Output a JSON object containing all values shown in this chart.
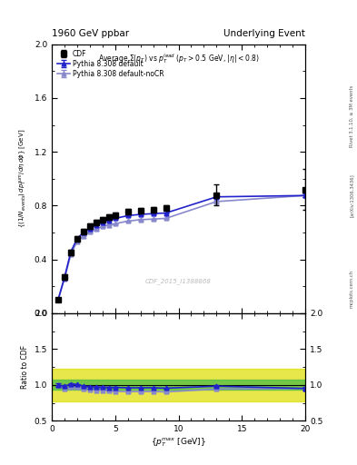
{
  "title_left": "1960 GeV ppbar",
  "title_right": "Underlying Event",
  "plot_title": "Average $\\Sigma(p_T)$ vs $p_T^{lead}$ ($p_T > 0.5$ GeV, $|\\eta| < 0.8$)",
  "watermark": "CDF_2015_I1388868",
  "rivet_label": "Rivet 3.1.10, ≥ 3M events",
  "arxiv_label": "[arXiv:1306.3436]",
  "mcplots_label": "mcplots.cern.ch",
  "xlabel": "$\\{p_T^{max}$ [GeV]$\\}$",
  "ylabel_main": "$\\{(1/N_{events})\\,dp_T^{sum}/d\\eta\\,d\\phi\\}$ [GeV]",
  "ylabel_ratio": "Ratio to CDF",
  "cdf_x": [
    0.5,
    1.0,
    1.5,
    2.0,
    2.5,
    3.0,
    3.5,
    4.0,
    4.5,
    5.0,
    6.0,
    7.0,
    8.0,
    9.0,
    13.0,
    20.0
  ],
  "cdf_y": [
    0.1,
    0.27,
    0.45,
    0.55,
    0.61,
    0.645,
    0.675,
    0.695,
    0.715,
    0.73,
    0.755,
    0.765,
    0.77,
    0.78,
    0.88,
    0.92
  ],
  "cdf_yerr": [
    0.01,
    0.02,
    0.02,
    0.02,
    0.02,
    0.02,
    0.02,
    0.02,
    0.02,
    0.02,
    0.02,
    0.02,
    0.02,
    0.02,
    0.08,
    0.15
  ],
  "py_def_x": [
    0.5,
    1.0,
    1.5,
    2.0,
    2.5,
    3.0,
    3.5,
    4.0,
    4.5,
    5.0,
    6.0,
    7.0,
    8.0,
    9.0,
    13.0,
    20.0
  ],
  "py_def_y": [
    0.1,
    0.265,
    0.455,
    0.555,
    0.6,
    0.63,
    0.655,
    0.675,
    0.69,
    0.705,
    0.725,
    0.735,
    0.74,
    0.745,
    0.865,
    0.875
  ],
  "py_def_yerr": [
    0.002,
    0.003,
    0.003,
    0.004,
    0.004,
    0.004,
    0.004,
    0.004,
    0.004,
    0.004,
    0.004,
    0.004,
    0.004,
    0.004,
    0.008,
    0.015
  ],
  "py_ncr_x": [
    0.5,
    1.0,
    1.5,
    2.0,
    2.5,
    3.0,
    3.5,
    4.0,
    4.5,
    5.0,
    6.0,
    7.0,
    8.0,
    9.0,
    13.0,
    20.0
  ],
  "py_ncr_y": [
    0.1,
    0.255,
    0.435,
    0.535,
    0.575,
    0.605,
    0.625,
    0.645,
    0.655,
    0.665,
    0.685,
    0.695,
    0.7,
    0.705,
    0.83,
    0.875
  ],
  "py_ncr_yerr": [
    0.002,
    0.003,
    0.003,
    0.004,
    0.004,
    0.004,
    0.004,
    0.004,
    0.004,
    0.004,
    0.004,
    0.004,
    0.004,
    0.004,
    0.008,
    0.015
  ],
  "cdf_color": "black",
  "py_def_color": "#2222cc",
  "py_ncr_color": "#8888cc",
  "band_green": "#44bb44",
  "band_yellow": "#dddd00",
  "ylim_main": [
    0.0,
    2.0
  ],
  "ylim_ratio": [
    0.5,
    2.0
  ],
  "xlim": [
    0,
    20
  ],
  "ratio_green_lo": 0.93,
  "ratio_green_hi": 1.07,
  "ratio_yellow_lo": 0.77,
  "ratio_yellow_hi": 1.23
}
